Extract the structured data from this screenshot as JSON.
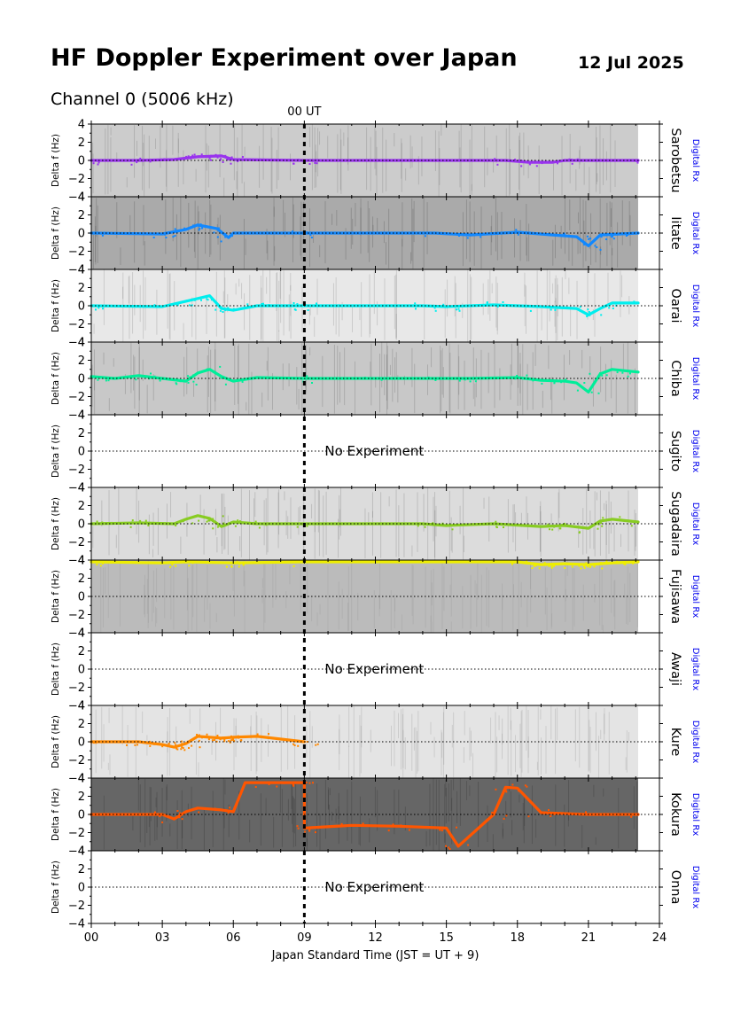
{
  "header": {
    "title": "HF Doppler Experiment over Japan",
    "date": "12 Jul 2025",
    "channel": "Channel 0 (5006 kHz)"
  },
  "chart_data": {
    "type": "area",
    "title": "HF Doppler Experiment over Japan",
    "subtitle": "Channel 0 (5006 kHz)",
    "xlabel": "Japan Standard Time (JST = UT + 9)",
    "ylabel": "Delta f (Hz)",
    "xlim": [
      0,
      24
    ],
    "ylim": [
      -4,
      4
    ],
    "x_ticks": [
      0,
      3,
      6,
      9,
      12,
      15,
      18,
      21,
      24
    ],
    "x_tick_labels": [
      "00",
      "03",
      "06",
      "09",
      "12",
      "15",
      "18",
      "21",
      "24"
    ],
    "y_ticks": [
      -4,
      -2,
      0,
      2,
      4
    ],
    "y_tick_labels": [
      "−4",
      "−2",
      "0",
      "2",
      "4"
    ],
    "ut_marker": {
      "x": 9,
      "label": "00 UT"
    },
    "receiver_label": "Digital Rx",
    "no_experiment_text": "No Experiment",
    "data_end": 23.1,
    "stations": [
      {
        "name": "Sarobetsu",
        "color": "#9933ee",
        "background": "#cccccc",
        "noise": "#555555",
        "has_data": true,
        "trace": [
          [
            0,
            0
          ],
          [
            2,
            0
          ],
          [
            3.5,
            0.1
          ],
          [
            4.5,
            0.4
          ],
          [
            5.5,
            0.5
          ],
          [
            6,
            0.1
          ],
          [
            9,
            0
          ],
          [
            17.5,
            0
          ],
          [
            18.5,
            -0.2
          ],
          [
            19.5,
            -0.2
          ],
          [
            20,
            0
          ],
          [
            23.1,
            0
          ]
        ]
      },
      {
        "name": "Iitate",
        "color": "#1188ff",
        "background": "#aaaaaa",
        "noise": "#333333",
        "has_data": true,
        "trace": [
          [
            0,
            0
          ],
          [
            3,
            -0.1
          ],
          [
            4,
            0.4
          ],
          [
            4.5,
            0.9
          ],
          [
            5.3,
            0.5
          ],
          [
            5.8,
            -0.5
          ],
          [
            6,
            0
          ],
          [
            9,
            0
          ],
          [
            14.5,
            0
          ],
          [
            16,
            -0.2
          ],
          [
            18,
            0.1
          ],
          [
            19.5,
            -0.2
          ],
          [
            20.5,
            -0.4
          ],
          [
            21,
            -1.4
          ],
          [
            21.5,
            -0.2
          ],
          [
            23.1,
            0
          ]
        ]
      },
      {
        "name": "Oarai",
        "color": "#00eeee",
        "background": "#e8e8e8",
        "noise": "#666666",
        "has_data": true,
        "trace": [
          [
            0,
            0
          ],
          [
            3,
            -0.1
          ],
          [
            4,
            0.5
          ],
          [
            4.5,
            0.8
          ],
          [
            5,
            1.1
          ],
          [
            5.5,
            -0.3
          ],
          [
            6,
            -0.5
          ],
          [
            7,
            0
          ],
          [
            9,
            0
          ],
          [
            14,
            0
          ],
          [
            15,
            -0.1
          ],
          [
            17,
            0.1
          ],
          [
            19,
            -0.1
          ],
          [
            20.5,
            -0.3
          ],
          [
            21,
            -1
          ],
          [
            21.5,
            -0.3
          ],
          [
            22,
            0.3
          ],
          [
            23.1,
            0.3
          ]
        ]
      },
      {
        "name": "Chiba",
        "color": "#00ee99",
        "background": "#c8c8c8",
        "noise": "#444444",
        "has_data": true,
        "trace": [
          [
            0,
            0.2
          ],
          [
            1,
            0
          ],
          [
            2,
            0.3
          ],
          [
            3,
            0
          ],
          [
            4,
            -0.3
          ],
          [
            4.5,
            0.6
          ],
          [
            5,
            1
          ],
          [
            5.5,
            0.2
          ],
          [
            6,
            -0.3
          ],
          [
            7,
            0.1
          ],
          [
            9,
            0
          ],
          [
            12,
            0
          ],
          [
            14,
            0
          ],
          [
            16,
            0
          ],
          [
            18,
            0.1
          ],
          [
            19,
            -0.2
          ],
          [
            20,
            -0.3
          ],
          [
            20.5,
            -0.5
          ],
          [
            21,
            -1.5
          ],
          [
            21.5,
            0.5
          ],
          [
            22,
            1
          ],
          [
            23.1,
            0.7
          ]
        ]
      },
      {
        "name": "Sugito",
        "color": "#888888",
        "background": "#ffffff",
        "noise": "#ffffff",
        "has_data": false,
        "trace": []
      },
      {
        "name": "Sugadaira",
        "color": "#88cc22",
        "background": "#dcdcdc",
        "noise": "#555555",
        "has_data": true,
        "trace": [
          [
            0,
            0
          ],
          [
            2,
            0.1
          ],
          [
            3.5,
            0
          ],
          [
            4,
            0.5
          ],
          [
            4.5,
            0.9
          ],
          [
            5,
            0.6
          ],
          [
            5.5,
            -0.3
          ],
          [
            6,
            0.2
          ],
          [
            7,
            0
          ],
          [
            9,
            0
          ],
          [
            14,
            0
          ],
          [
            15,
            -0.2
          ],
          [
            17,
            0
          ],
          [
            19,
            -0.3
          ],
          [
            20,
            -0.2
          ],
          [
            21,
            -0.5
          ],
          [
            21.5,
            0.3
          ],
          [
            22,
            0.5
          ],
          [
            23.1,
            0.2
          ]
        ]
      },
      {
        "name": "Fujisawa",
        "color": "#eeee00",
        "background": "#bbbbbb",
        "noise": "#888888",
        "has_data": true,
        "trace": [
          [
            0,
            3.8
          ],
          [
            3,
            3.7
          ],
          [
            4,
            3.8
          ],
          [
            6,
            3.7
          ],
          [
            9,
            3.8
          ],
          [
            18,
            3.8
          ],
          [
            19,
            3.5
          ],
          [
            20,
            3.6
          ],
          [
            21,
            3.5
          ],
          [
            22,
            3.7
          ],
          [
            23.1,
            3.8
          ]
        ]
      },
      {
        "name": "Awaji",
        "color": "#888888",
        "background": "#ffffff",
        "noise": "#ffffff",
        "has_data": false,
        "trace": []
      },
      {
        "name": "Kure",
        "color": "#ff8800",
        "background": "#e4e4e4",
        "noise": "#777777",
        "has_data": true,
        "trace": [
          [
            0,
            0
          ],
          [
            2,
            0
          ],
          [
            3,
            -0.3
          ],
          [
            3.5,
            -0.6
          ],
          [
            4,
            -0.2
          ],
          [
            4.5,
            0.6
          ],
          [
            5.5,
            0.4
          ],
          [
            6,
            0.5
          ],
          [
            7,
            0.6
          ],
          [
            9,
            0
          ]
        ]
      },
      {
        "name": "Kokura",
        "color": "#ff5500",
        "background": "#666666",
        "noise": "#222222",
        "has_data": true,
        "trace": [
          [
            0,
            0
          ],
          [
            3,
            0
          ],
          [
            3.5,
            -0.5
          ],
          [
            4,
            0.3
          ],
          [
            4.5,
            0.7
          ],
          [
            5.5,
            0.5
          ],
          [
            6,
            0.3
          ],
          [
            6.5,
            3.5
          ],
          [
            8,
            3.5
          ],
          [
            9,
            3.5
          ],
          [
            9,
            -1.5
          ],
          [
            11,
            -1.2
          ],
          [
            13,
            -1.3
          ],
          [
            15,
            -1.5
          ],
          [
            15.5,
            -3.5
          ],
          [
            17,
            0
          ],
          [
            17.5,
            3
          ],
          [
            18,
            2.9
          ],
          [
            19,
            0.2
          ],
          [
            21,
            0
          ],
          [
            23.1,
            0
          ]
        ]
      },
      {
        "name": "Onna",
        "color": "#888888",
        "background": "#ffffff",
        "noise": "#ffffff",
        "has_data": false,
        "trace": []
      }
    ]
  }
}
